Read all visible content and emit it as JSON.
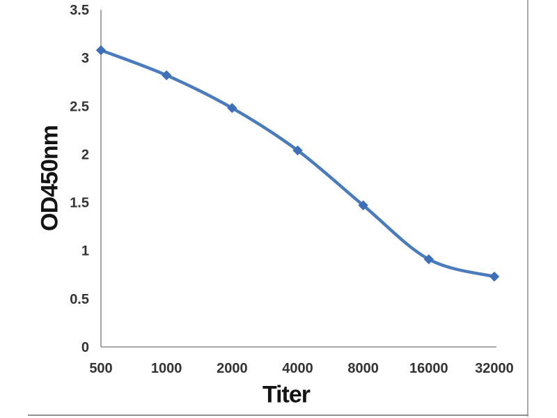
{
  "chart_data": {
    "type": "line",
    "title": "",
    "xlabel": "Titer",
    "ylabel": "OD450nm",
    "categories": [
      "500",
      "1000",
      "2000",
      "4000",
      "8000",
      "16000",
      "32000"
    ],
    "series": [
      {
        "name": "OD450nm",
        "values": [
          3.08,
          2.82,
          2.48,
          2.04,
          1.47,
          0.91,
          0.73
        ]
      }
    ],
    "ylim": [
      0,
      3.5
    ],
    "ytick_step": 0.5,
    "yticks": [
      "0",
      "0.5",
      "1",
      "1.5",
      "2",
      "2.5",
      "3",
      "3.5"
    ],
    "grid": false,
    "legend": "none",
    "smooth": true,
    "marker": "diamond",
    "colors": {
      "line": "#4a7cbd",
      "marker": "#3e6fb8",
      "axis": "#9b9b9b",
      "tick_text": "#333333"
    }
  }
}
